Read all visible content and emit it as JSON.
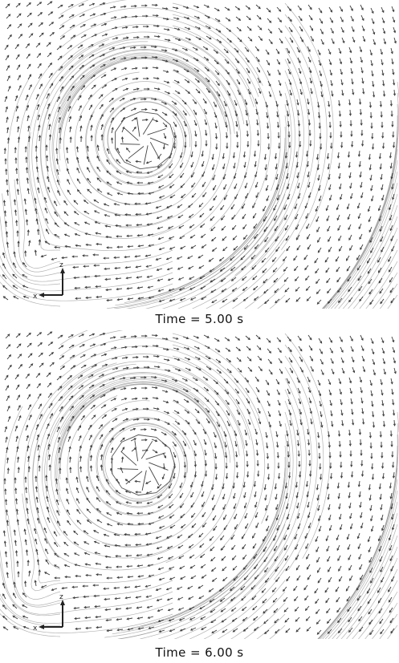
{
  "colors": {
    "background": "#ffffff",
    "streamline": "#9a9a9a",
    "arrow": "#3a3a3a",
    "caption": "#111111"
  },
  "panels": [
    {
      "caption": "Time = 5.00 s",
      "vortex_shown": true,
      "triad": {
        "axis_up": "z",
        "axis_left": "x"
      }
    },
    {
      "caption": "Time = 6.00 s",
      "vortex_shown": true,
      "triad": {
        "axis_up": "z",
        "axis_left": "x"
      }
    }
  ]
}
